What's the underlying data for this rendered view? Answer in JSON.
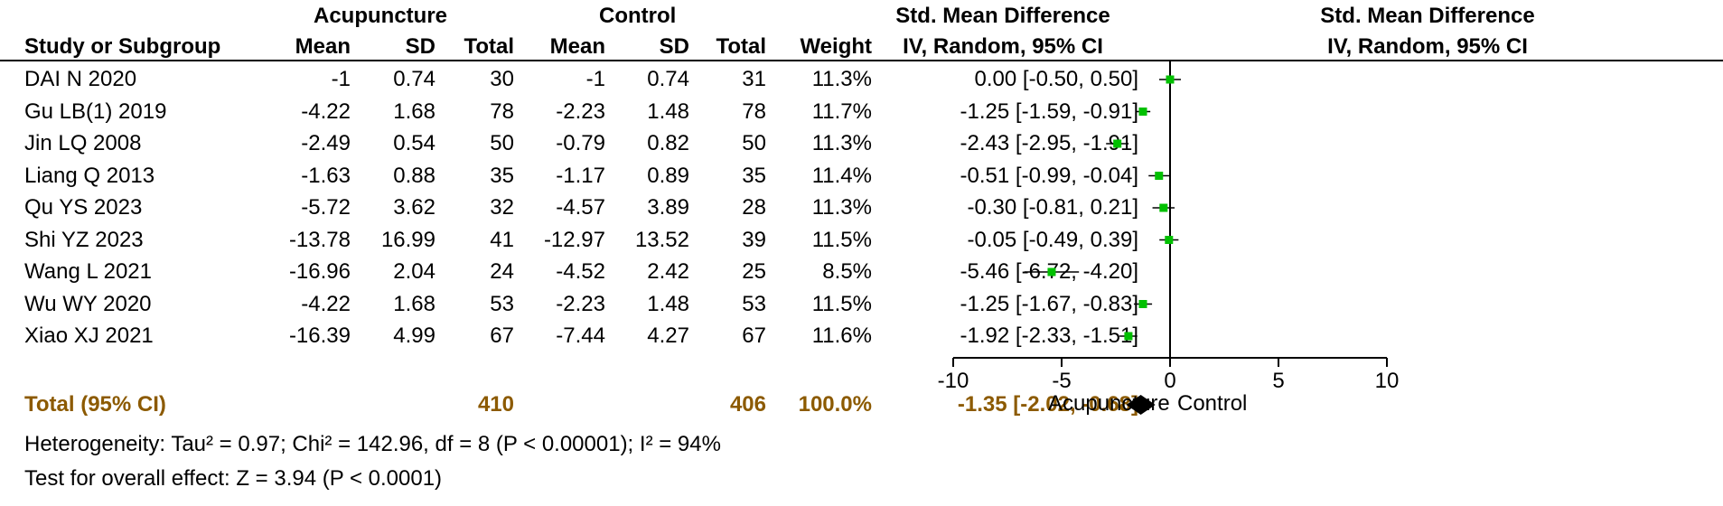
{
  "header": {
    "group1": "Acupuncture",
    "group2": "Control",
    "col_effect": "Std. Mean Difference",
    "col_method": "IV, Random, 95% CI",
    "plot_title": "Std. Mean Difference",
    "plot_method": "IV, Random, 95% CI",
    "study": "Study or Subgroup",
    "mean": "Mean",
    "sd": "SD",
    "total": "Total",
    "weight": "Weight"
  },
  "studies": [
    {
      "name": "DAI N 2020",
      "m1": "-1",
      "sd1": "0.74",
      "n1": "30",
      "m2": "-1",
      "sd2": "0.74",
      "n2": "31",
      "weight": "11.3%",
      "ci": "0.00 [-0.50, 0.50]"
    },
    {
      "name": "Gu LB(1) 2019",
      "m1": "-4.22",
      "sd1": "1.68",
      "n1": "78",
      "m2": "-2.23",
      "sd2": "1.48",
      "n2": "78",
      "weight": "11.7%",
      "ci": "-1.25 [-1.59, -0.91]"
    },
    {
      "name": "Jin LQ 2008",
      "m1": "-2.49",
      "sd1": "0.54",
      "n1": "50",
      "m2": "-0.79",
      "sd2": "0.82",
      "n2": "50",
      "weight": "11.3%",
      "ci": "-2.43 [-2.95, -1.91]"
    },
    {
      "name": "Liang Q 2013",
      "m1": "-1.63",
      "sd1": "0.88",
      "n1": "35",
      "m2": "-1.17",
      "sd2": "0.89",
      "n2": "35",
      "weight": "11.4%",
      "ci": "-0.51 [-0.99, -0.04]"
    },
    {
      "name": "Qu YS 2023",
      "m1": "-5.72",
      "sd1": "3.62",
      "n1": "32",
      "m2": "-4.57",
      "sd2": "3.89",
      "n2": "28",
      "weight": "11.3%",
      "ci": "-0.30 [-0.81, 0.21]"
    },
    {
      "name": "Shi YZ 2023",
      "m1": "-13.78",
      "sd1": "16.99",
      "n1": "41",
      "m2": "-12.97",
      "sd2": "13.52",
      "n2": "39",
      "weight": "11.5%",
      "ci": "-0.05 [-0.49, 0.39]"
    },
    {
      "name": "Wang L 2021",
      "m1": "-16.96",
      "sd1": "2.04",
      "n1": "24",
      "m2": "-4.52",
      "sd2": "2.42",
      "n2": "25",
      "weight": "8.5%",
      "ci": "-5.46 [-6.72, -4.20]"
    },
    {
      "name": "Wu WY 2020",
      "m1": "-4.22",
      "sd1": "1.68",
      "n1": "53",
      "m2": "-2.23",
      "sd2": "1.48",
      "n2": "53",
      "weight": "11.5%",
      "ci": "-1.25 [-1.67, -0.83]"
    },
    {
      "name": "Xiao XJ 2021",
      "m1": "-16.39",
      "sd1": "4.99",
      "n1": "67",
      "m2": "-7.44",
      "sd2": "4.27",
      "n2": "67",
      "weight": "11.6%",
      "ci": "-1.92 [-2.33, -1.51]"
    }
  ],
  "total": {
    "label": "Total (95% CI)",
    "n1": "410",
    "n2": "406",
    "weight": "100.0%",
    "ci": "-1.35 [-2.02, -0.68]"
  },
  "footer": {
    "heterogeneity": "Heterogeneity: Tau² = 0.97; Chi² = 142.96, df = 8 (P < 0.00001); I² = 94%",
    "overall": "Test for overall effect: Z = 3.94 (P < 0.0001)"
  },
  "colors": {
    "point": "#00c000",
    "diamond": "#000000",
    "bold_text": "#8c5a00"
  },
  "chart_data": {
    "type": "scatter",
    "subtype": "forest-plot",
    "title": "Std. Mean Difference",
    "subtitle": "IV, Random, 95% CI",
    "xlim": [
      -10,
      10
    ],
    "xticks": [
      "-10",
      "-5",
      "0",
      "5",
      "10"
    ],
    "xtick_values": [
      -10,
      -5,
      0,
      5,
      10
    ],
    "xlabel_left": "Acupuncture",
    "xlabel_right": "Control",
    "studies": [
      {
        "name": "DAI N 2020",
        "smd": 0.0,
        "lo": -0.5,
        "hi": 0.5
      },
      {
        "name": "Gu LB(1) 2019",
        "smd": -1.25,
        "lo": -1.59,
        "hi": -0.91
      },
      {
        "name": "Jin LQ 2008",
        "smd": -2.43,
        "lo": -2.95,
        "hi": -1.91
      },
      {
        "name": "Liang Q 2013",
        "smd": -0.51,
        "lo": -0.99,
        "hi": -0.04
      },
      {
        "name": "Qu YS 2023",
        "smd": -0.3,
        "lo": -0.81,
        "hi": 0.21
      },
      {
        "name": "Shi YZ 2023",
        "smd": -0.05,
        "lo": -0.49,
        "hi": 0.39
      },
      {
        "name": "Wang L 2021",
        "smd": -5.46,
        "lo": -6.72,
        "hi": -4.2
      },
      {
        "name": "Wu WY 2020",
        "smd": -1.25,
        "lo": -1.67,
        "hi": -0.83
      },
      {
        "name": "Xiao XJ 2021",
        "smd": -1.92,
        "lo": -2.33,
        "hi": -1.51
      }
    ],
    "pooled": {
      "smd": -1.35,
      "lo": -2.02,
      "hi": -0.68
    }
  }
}
